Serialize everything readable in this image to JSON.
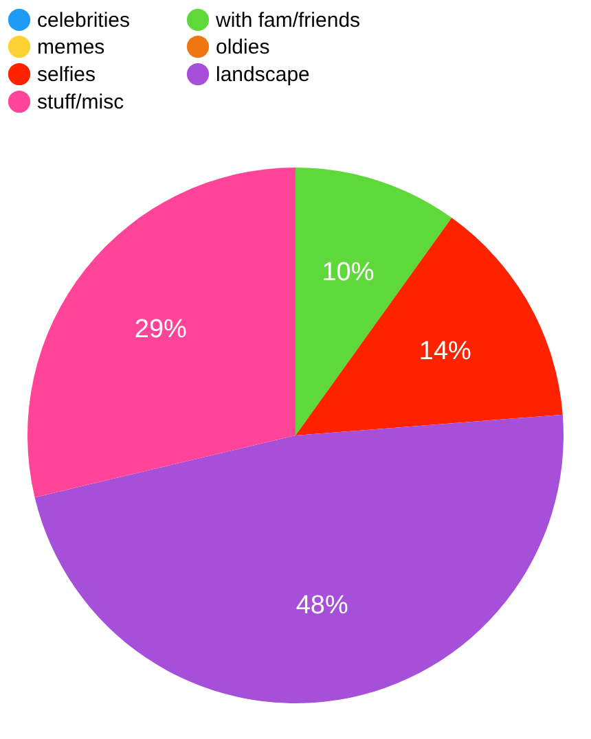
{
  "chart_data": {
    "type": "pie",
    "categories": [
      "celebrities",
      "with fam/friends",
      "memes",
      "oldies",
      "selfies",
      "landscape",
      "stuff/misc"
    ],
    "values": [
      0,
      10,
      0,
      0,
      14,
      48,
      29
    ],
    "colors": [
      "#1e9bf5",
      "#5fd83a",
      "#fbd134",
      "#f07612",
      "#ff2200",
      "#a64fd8",
      "#ff4499"
    ],
    "value_labels": [
      null,
      "10%",
      null,
      null,
      "14%",
      "48%",
      "29%"
    ],
    "legend": "top left"
  }
}
